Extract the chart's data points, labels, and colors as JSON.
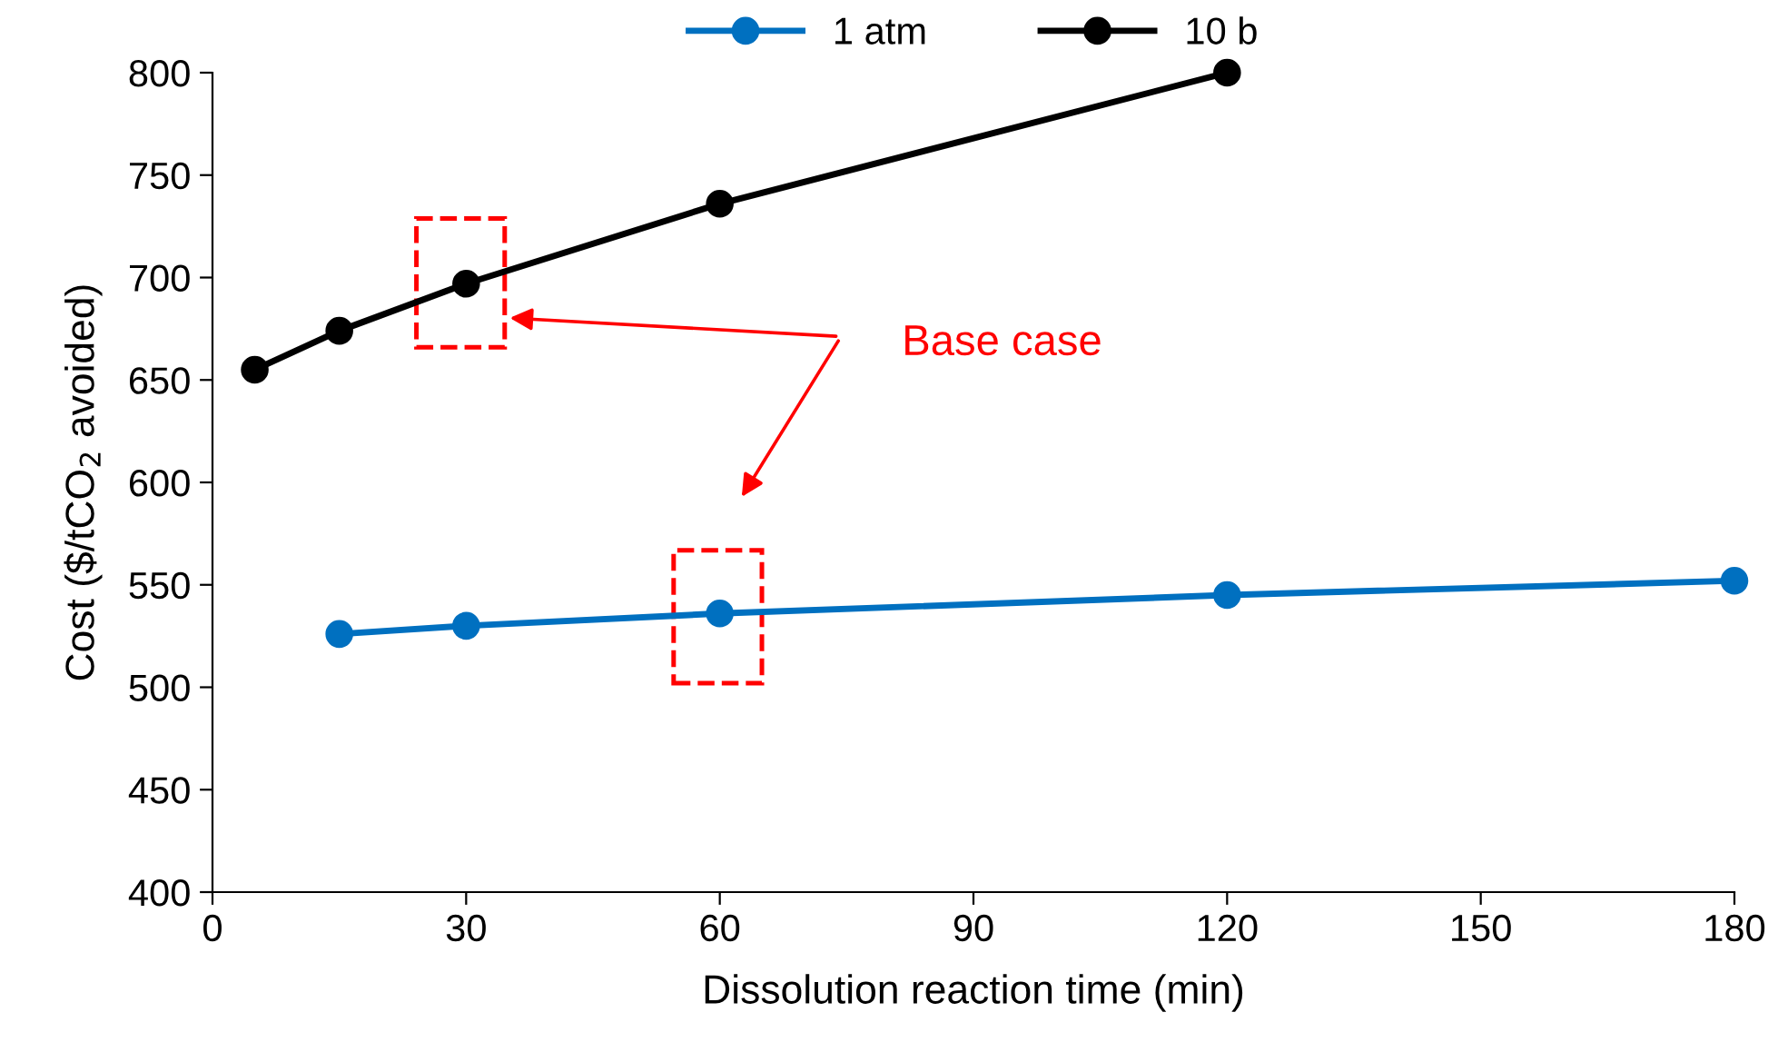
{
  "chart_data": {
    "type": "line",
    "xlabel": "Dissolution reaction time (min)",
    "ylabel": "Cost ($/tCO$_{2}$ avoided)",
    "series": [
      {
        "name": "1 atm",
        "color": "#0070c0",
        "x": [
          15,
          30,
          60,
          120,
          180
        ],
        "values": [
          526,
          530,
          536,
          545,
          552
        ]
      },
      {
        "name": "10 b",
        "color": "#000000",
        "x": [
          5,
          15,
          30,
          60,
          120
        ],
        "values": [
          655,
          674,
          697,
          736,
          800
        ]
      }
    ],
    "xlim": [
      0,
      180
    ],
    "xticks": [
      0,
      30,
      60,
      90,
      120,
      150,
      180
    ],
    "ylim": [
      400,
      800
    ],
    "yticks": [
      400,
      450,
      500,
      550,
      600,
      650,
      700,
      750,
      800
    ],
    "annotations": [
      "Base case"
    ],
    "marker": "circle",
    "line_style": "solid",
    "legend": "top",
    "grid": false
  }
}
